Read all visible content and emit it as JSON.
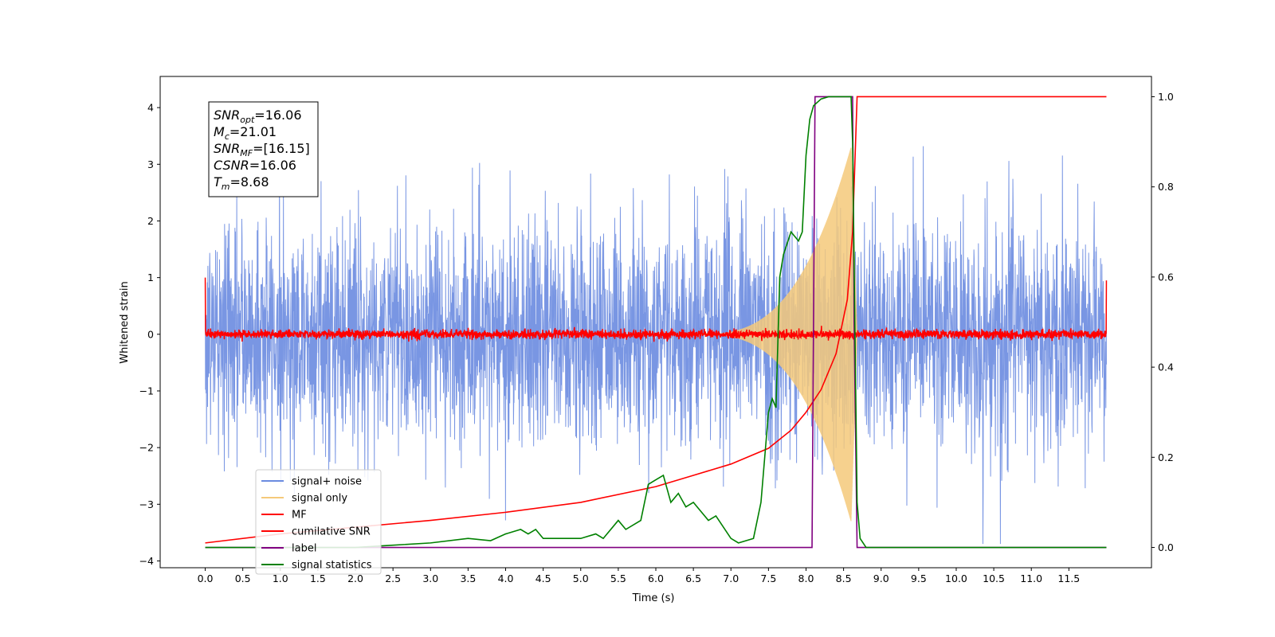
{
  "chart_data": {
    "type": "line",
    "xlabel": "Time (s)",
    "ylabel": "Whitened strain",
    "xlim": [
      -0.6,
      12.6
    ],
    "ylim": [
      -4.12,
      4.55
    ],
    "y2lim": [
      -0.045,
      1.045
    ],
    "x_ticks": [
      0.0,
      0.5,
      1.0,
      1.5,
      2.0,
      2.5,
      3.0,
      3.5,
      4.0,
      4.5,
      5.0,
      5.5,
      6.0,
      6.5,
      7.0,
      7.5,
      8.0,
      8.5,
      9.0,
      9.5,
      10.0,
      10.5,
      11.0,
      11.5
    ],
    "x_tick_labels": [
      "0.0",
      "0.5",
      "1.0",
      "1.5",
      "2.0",
      "2.5",
      "3.0",
      "3.5",
      "4.0",
      "4.5",
      "5.0",
      "5.5",
      "6.0",
      "6.5",
      "7.0",
      "7.5",
      "8.0",
      "8.5",
      "9.0",
      "9.5",
      "10.0",
      "10.5",
      "11.0",
      "11.5"
    ],
    "y_ticks": [
      -4,
      -3,
      -2,
      -1,
      0,
      1,
      2,
      3,
      4
    ],
    "y_tick_labels": [
      "−4",
      "−3",
      "−2",
      "−1",
      "0",
      "1",
      "2",
      "3",
      "4"
    ],
    "y2_ticks": [
      0.0,
      0.2,
      0.4,
      0.6,
      0.8,
      1.0
    ],
    "y2_tick_labels": [
      "0.0",
      "0.2",
      "0.4",
      "0.6",
      "0.8",
      "1.0"
    ],
    "legend_position": "lower-left",
    "series": [
      {
        "name": "signal+ noise",
        "color": "#6a8be0",
        "axis": "left",
        "kind": "noise",
        "t_range": [
          0.0,
          12.0
        ],
        "amplitude_sd": 1.0,
        "amplitude_range": [
          -3.7,
          4.1
        ]
      },
      {
        "name": "signal only",
        "color": "#f5c97a",
        "axis": "left",
        "kind": "chirp",
        "t_range": [
          6.5,
          8.68
        ],
        "peak_amplitude": 3.3,
        "peak_time": 8.6
      },
      {
        "name": "MF",
        "color": "#ff0000",
        "axis": "left",
        "kind": "noise",
        "t_range": [
          0.0,
          12.0
        ],
        "amplitude_sd": 0.04,
        "edge_values": [
          1.0,
          0.95
        ]
      },
      {
        "name": "cumilative SNR",
        "color": "#ff0000",
        "axis": "right",
        "x": [
          0.0,
          1.0,
          2.0,
          3.0,
          4.0,
          5.0,
          6.0,
          6.5,
          7.0,
          7.5,
          7.8,
          8.0,
          8.2,
          8.4,
          8.55,
          8.62,
          8.68,
          8.7,
          12.0
        ],
        "values": [
          0.01,
          0.03,
          0.045,
          0.06,
          0.078,
          0.1,
          0.135,
          0.16,
          0.185,
          0.22,
          0.26,
          0.3,
          0.35,
          0.43,
          0.55,
          0.7,
          1.0,
          1.0,
          1.0
        ]
      },
      {
        "name": "label",
        "color": "#800080",
        "axis": "right",
        "x": [
          0.0,
          8.08,
          8.12,
          8.62,
          8.64,
          8.68,
          12.0
        ],
        "values": [
          0.0,
          0.0,
          1.0,
          1.0,
          0.5,
          0.0,
          0.0
        ]
      },
      {
        "name": "signal statistics",
        "color": "#008000",
        "axis": "right",
        "x": [
          0.0,
          1.0,
          2.0,
          2.5,
          3.0,
          3.5,
          3.8,
          4.0,
          4.2,
          4.3,
          4.4,
          4.5,
          4.8,
          5.0,
          5.2,
          5.3,
          5.5,
          5.6,
          5.8,
          5.9,
          6.0,
          6.1,
          6.2,
          6.3,
          6.4,
          6.5,
          6.6,
          6.7,
          6.8,
          7.0,
          7.1,
          7.3,
          7.4,
          7.5,
          7.55,
          7.6,
          7.65,
          7.7,
          7.8,
          7.9,
          7.95,
          8.0,
          8.05,
          8.1,
          8.2,
          8.3,
          8.4,
          8.5,
          8.6,
          8.62,
          8.65,
          8.68,
          8.72,
          8.8,
          9.0,
          12.0
        ],
        "values": [
          0.0,
          0.0,
          0.0,
          0.005,
          0.01,
          0.02,
          0.015,
          0.03,
          0.04,
          0.03,
          0.04,
          0.02,
          0.02,
          0.02,
          0.03,
          0.02,
          0.06,
          0.04,
          0.06,
          0.14,
          0.15,
          0.16,
          0.1,
          0.12,
          0.09,
          0.1,
          0.08,
          0.06,
          0.07,
          0.02,
          0.01,
          0.02,
          0.1,
          0.3,
          0.33,
          0.31,
          0.6,
          0.65,
          0.7,
          0.68,
          0.7,
          0.87,
          0.95,
          0.98,
          0.995,
          1.0,
          1.0,
          1.0,
          1.0,
          0.9,
          0.5,
          0.1,
          0.02,
          0.0,
          0.0,
          0.0
        ]
      }
    ],
    "annotation_lines": [
      {
        "main": "SNR",
        "sub": "opt",
        "value": "=16.06"
      },
      {
        "main": "M",
        "sub": "c",
        "value": "=21.01"
      },
      {
        "main": "SNR",
        "sub": "MF",
        "value": "=[16.15]"
      },
      {
        "main": "CSNR",
        "sub": "",
        "value": "=16.06"
      },
      {
        "main": "T",
        "sub": "m",
        "value": "=8.68"
      }
    ]
  }
}
